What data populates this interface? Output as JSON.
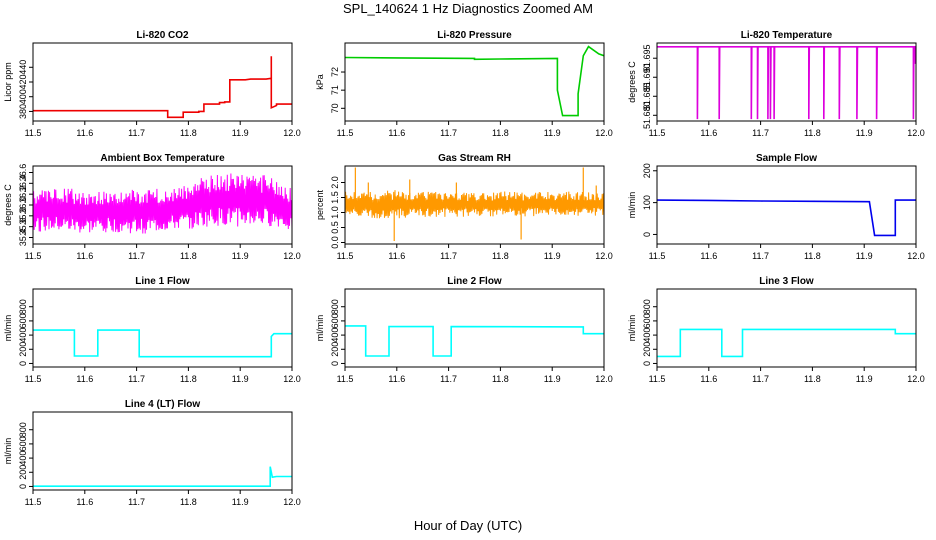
{
  "figure": {
    "title": "SPL_140624 1 Hz Diagnostics Zoomed AM",
    "xlabel": "Hour of Day (UTC)"
  },
  "chart_data": [
    {
      "id": "co2",
      "type": "line",
      "title": "Li-820 CO2",
      "ylabel": "Licor ppm",
      "color": "#ee0000",
      "xlim": [
        11.5,
        12.0
      ],
      "ylim": [
        367,
        473
      ],
      "yticks": [
        380,
        400,
        420,
        440
      ],
      "xticks": [
        11.5,
        11.6,
        11.7,
        11.8,
        11.9,
        12.0
      ],
      "series": [
        {
          "values": [
            [
              11.5,
              381
            ],
            [
              11.76,
              381
            ],
            [
              11.76,
              372
            ],
            [
              11.78,
              372
            ],
            [
              11.79,
              372
            ],
            [
              11.79,
              379
            ],
            [
              11.82,
              379
            ],
            [
              11.82,
              380
            ],
            [
              11.83,
              380
            ],
            [
              11.83,
              390
            ],
            [
              11.86,
              390
            ],
            [
              11.86,
              392
            ],
            [
              11.87,
              392
            ],
            [
              11.87,
              393
            ],
            [
              11.88,
              393
            ],
            [
              11.88,
              404
            ],
            [
              11.88,
              423
            ],
            [
              11.91,
              423
            ],
            [
              11.92,
              424
            ],
            [
              11.95,
              424
            ],
            [
              11.96,
              425
            ],
            [
              11.96,
              390
            ],
            [
              11.96,
              455
            ],
            [
              11.96,
              385
            ],
            [
              11.97,
              388
            ],
            [
              11.97,
              390
            ],
            [
              12.0,
              390
            ]
          ]
        }
      ]
    },
    {
      "id": "pressure",
      "type": "line",
      "title": "Li-820 Pressure",
      "ylabel": "kPa",
      "color": "#00cc00",
      "xlim": [
        11.5,
        12.0
      ],
      "ylim": [
        69.3,
        73.6
      ],
      "yticks": [
        70,
        71,
        72
      ],
      "xticks": [
        11.5,
        11.6,
        11.7,
        11.8,
        11.9,
        12.0
      ],
      "series": [
        {
          "values": [
            [
              11.5,
              72.8
            ],
            [
              11.6,
              72.78
            ],
            [
              11.75,
              72.75
            ],
            [
              11.75,
              72.7
            ],
            [
              11.8,
              72.72
            ],
            [
              11.91,
              72.75
            ],
            [
              11.91,
              71.0
            ],
            [
              11.92,
              69.6
            ],
            [
              11.95,
              69.6
            ],
            [
              11.95,
              70.8
            ],
            [
              11.96,
              72.9
            ],
            [
              11.97,
              73.4
            ],
            [
              11.99,
              73.0
            ],
            [
              12.0,
              72.9
            ]
          ]
        }
      ]
    },
    {
      "id": "licor_temp",
      "type": "line",
      "title": "Li-820 Temperature",
      "ylabel": "degrees C",
      "color": "#dd00dd",
      "xlim": [
        11.5,
        12.0
      ],
      "ylim": [
        51.6785,
        51.699
      ],
      "yticks": [
        51.68,
        51.685,
        51.69,
        51.695
      ],
      "xticks": [
        11.5,
        11.6,
        11.7,
        11.8,
        11.9,
        12.0
      ],
      "series": [
        {
          "values": [
            [
              11.5,
              51.698
            ],
            [
              11.578,
              51.698
            ],
            [
              11.578,
              51.679
            ],
            [
              11.579,
              51.698
            ],
            [
              11.62,
              51.698
            ],
            [
              11.62,
              51.679
            ],
            [
              11.621,
              51.698
            ],
            [
              11.682,
              51.698
            ],
            [
              11.682,
              51.679
            ],
            [
              11.683,
              51.698
            ],
            [
              11.694,
              51.698
            ],
            [
              11.694,
              51.679
            ],
            [
              11.695,
              51.698
            ],
            [
              11.714,
              51.698
            ],
            [
              11.714,
              51.679
            ],
            [
              11.715,
              51.698
            ],
            [
              11.719,
              51.698
            ],
            [
              11.719,
              51.679
            ],
            [
              11.72,
              51.698
            ],
            [
              11.726,
              51.698
            ],
            [
              11.726,
              51.679
            ],
            [
              11.727,
              51.698
            ],
            [
              11.793,
              51.698
            ],
            [
              11.793,
              51.679
            ],
            [
              11.794,
              51.698
            ],
            [
              11.822,
              51.698
            ],
            [
              11.822,
              51.679
            ],
            [
              11.823,
              51.698
            ],
            [
              11.852,
              51.698
            ],
            [
              11.852,
              51.679
            ],
            [
              11.853,
              51.698
            ],
            [
              11.886,
              51.698
            ],
            [
              11.886,
              51.679
            ],
            [
              11.887,
              51.698
            ],
            [
              11.924,
              51.698
            ],
            [
              11.924,
              51.679
            ],
            [
              11.925,
              51.698
            ],
            [
              11.995,
              51.698
            ],
            [
              11.995,
              51.679
            ],
            [
              11.996,
              51.698
            ],
            [
              11.999,
              51.698
            ],
            [
              11.999,
              51.6935
            ],
            [
              12.0,
              51.698
            ]
          ]
        }
      ]
    },
    {
      "id": "box_temp",
      "type": "line",
      "title": "Ambient Box Temperature",
      "ylabel": "degrees C",
      "color": "#ff00ff",
      "xlim": [
        11.5,
        12.0
      ],
      "ylim": [
        35.28,
        36.72
      ],
      "yticks": [
        35.4,
        35.6,
        35.8,
        36.0,
        36.2,
        36.4,
        36.6
      ],
      "xticks": [
        11.5,
        11.6,
        11.7,
        11.8,
        11.9,
        12.0
      ],
      "band": [
        [
          11.5,
          35.5,
          36.3
        ],
        [
          11.55,
          35.5,
          36.3
        ],
        [
          11.6,
          35.45,
          36.3
        ],
        [
          11.65,
          35.5,
          36.25
        ],
        [
          11.7,
          35.45,
          36.3
        ],
        [
          11.75,
          35.5,
          36.3
        ],
        [
          11.8,
          35.55,
          36.4
        ],
        [
          11.85,
          35.6,
          36.6
        ],
        [
          11.9,
          35.6,
          36.6
        ],
        [
          11.95,
          35.6,
          36.55
        ],
        [
          12.0,
          35.55,
          36.3
        ]
      ]
    },
    {
      "id": "rh",
      "type": "line",
      "title": "Gas Stream RH",
      "ylabel": "percent",
      "color": "#ff9900",
      "xlim": [
        11.5,
        12.0
      ],
      "ylim": [
        -0.05,
        2.55
      ],
      "yticks": [
        0.0,
        0.5,
        1.0,
        1.5,
        2.0
      ],
      "xticks": [
        11.5,
        11.6,
        11.7,
        11.8,
        11.9,
        12.0
      ],
      "band": [
        [
          11.5,
          0.85,
          1.7
        ],
        [
          11.55,
          0.8,
          1.7
        ],
        [
          11.6,
          0.8,
          1.75
        ],
        [
          11.65,
          0.85,
          1.7
        ],
        [
          11.7,
          0.85,
          1.7
        ],
        [
          11.75,
          0.85,
          1.65
        ],
        [
          11.8,
          0.85,
          1.7
        ],
        [
          11.85,
          0.85,
          1.7
        ],
        [
          11.9,
          0.85,
          1.7
        ],
        [
          11.95,
          0.85,
          1.7
        ],
        [
          12.0,
          0.9,
          1.65
        ]
      ],
      "spikes": [
        [
          11.52,
          2.5
        ],
        [
          11.545,
          2.0
        ],
        [
          11.595,
          0.05
        ],
        [
          11.625,
          2.1
        ],
        [
          11.715,
          2.0
        ],
        [
          11.84,
          0.1
        ],
        [
          11.96,
          2.5
        ],
        [
          11.985,
          1.9
        ]
      ]
    },
    {
      "id": "sample_flow",
      "type": "line",
      "title": "Sample Flow",
      "ylabel": "ml/min",
      "color": "#0000ee",
      "xlim": [
        11.5,
        12.0
      ],
      "ylim": [
        -30,
        215
      ],
      "yticks": [
        0,
        100,
        200
      ],
      "xticks": [
        11.5,
        11.6,
        11.7,
        11.8,
        11.9,
        12.0
      ],
      "series": [
        {
          "values": [
            [
              11.5,
              108
            ],
            [
              11.6,
              107
            ],
            [
              11.7,
              105
            ],
            [
              11.8,
              104
            ],
            [
              11.91,
              103
            ],
            [
              11.92,
              -3
            ],
            [
              11.96,
              -3
            ],
            [
              11.96,
              108
            ],
            [
              12.0,
              108
            ]
          ]
        }
      ]
    },
    {
      "id": "line1",
      "type": "line",
      "title": "Line 1 Flow",
      "ylabel": "ml/min",
      "color": "#00ffff",
      "xlim": [
        11.5,
        12.0
      ],
      "ylim": [
        -50,
        1050
      ],
      "yticks": [
        0,
        200,
        400,
        600,
        800
      ],
      "xticks": [
        11.5,
        11.6,
        11.7,
        11.8,
        11.9,
        12.0
      ],
      "series": [
        {
          "values": [
            [
              11.5,
              470
            ],
            [
              11.58,
              470
            ],
            [
              11.58,
              105
            ],
            [
              11.625,
              105
            ],
            [
              11.625,
              470
            ],
            [
              11.705,
              470
            ],
            [
              11.705,
              95
            ],
            [
              11.96,
              95
            ],
            [
              11.96,
              380
            ],
            [
              11.965,
              420
            ],
            [
              12.0,
              420
            ]
          ]
        }
      ]
    },
    {
      "id": "line2",
      "type": "line",
      "title": "Line 2 Flow",
      "ylabel": "ml/min",
      "color": "#00ffff",
      "xlim": [
        11.5,
        12.0
      ],
      "ylim": [
        -50,
        1050
      ],
      "yticks": [
        0,
        200,
        400,
        600,
        800
      ],
      "xticks": [
        11.5,
        11.6,
        11.7,
        11.8,
        11.9,
        12.0
      ],
      "series": [
        {
          "values": [
            [
              11.5,
              530
            ],
            [
              11.54,
              530
            ],
            [
              11.54,
              105
            ],
            [
              11.585,
              105
            ],
            [
              11.585,
              520
            ],
            [
              11.67,
              520
            ],
            [
              11.67,
              105
            ],
            [
              11.705,
              105
            ],
            [
              11.705,
              520
            ],
            [
              11.96,
              515
            ],
            [
              11.96,
              420
            ],
            [
              12.0,
              420
            ]
          ]
        }
      ]
    },
    {
      "id": "line3",
      "type": "line",
      "title": "Line 3 Flow",
      "ylabel": "ml/min",
      "color": "#00ffff",
      "xlim": [
        11.5,
        12.0
      ],
      "ylim": [
        -50,
        1050
      ],
      "yticks": [
        0,
        200,
        400,
        600,
        800
      ],
      "xticks": [
        11.5,
        11.6,
        11.7,
        11.8,
        11.9,
        12.0
      ],
      "series": [
        {
          "values": [
            [
              11.5,
              100
            ],
            [
              11.545,
              100
            ],
            [
              11.545,
              480
            ],
            [
              11.625,
              480
            ],
            [
              11.625,
              100
            ],
            [
              11.665,
              100
            ],
            [
              11.665,
              480
            ],
            [
              11.96,
              480
            ],
            [
              11.96,
              420
            ],
            [
              12.0,
              420
            ]
          ]
        }
      ]
    },
    {
      "id": "line4",
      "type": "line",
      "title": "Line 4 (LT) Flow",
      "ylabel": "ml/min",
      "color": "#00ffff",
      "xlim": [
        11.5,
        12.0
      ],
      "ylim": [
        -50,
        1050
      ],
      "yticks": [
        0,
        200,
        400,
        600,
        800
      ],
      "xticks": [
        11.5,
        11.6,
        11.7,
        11.8,
        11.9,
        12.0
      ],
      "series": [
        {
          "values": [
            [
              11.5,
              3
            ],
            [
              11.958,
              3
            ],
            [
              11.958,
              280
            ],
            [
              11.962,
              130
            ],
            [
              11.97,
              140
            ],
            [
              12.0,
              140
            ]
          ]
        }
      ]
    }
  ]
}
